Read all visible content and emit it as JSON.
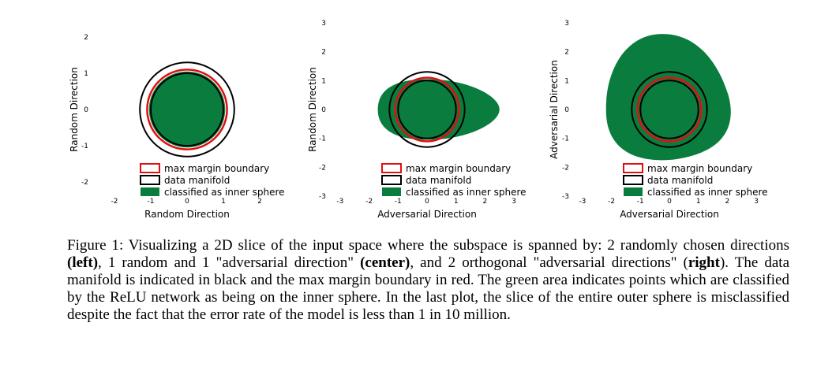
{
  "colors": {
    "inner": "#0a7d3e",
    "manifold": "#000000",
    "margin": "#e01010"
  },
  "legend": {
    "max_margin": "max margin boundary",
    "manifold": "data manifold",
    "classified": "classified as inner sphere"
  },
  "chart_data": [
    {
      "type": "region",
      "xlabel": "Random Direction",
      "ylabel": "Random Direction",
      "xticks": [
        "-2",
        "-1",
        "0",
        "1",
        "2"
      ],
      "yticks": [
        "2",
        "1",
        "0",
        "-1",
        "-2"
      ],
      "xlim": [
        -2,
        2
      ],
      "ylim": [
        -2,
        2
      ],
      "data_manifold_radius": 1.0,
      "max_margin_radius": 1.1,
      "outer_radius": 1.3,
      "inner_region": {
        "shape": "disk",
        "radius": 1.05
      }
    },
    {
      "type": "region",
      "xlabel": "Adversarial Direction",
      "ylabel": "Random Direction",
      "xticks": [
        "-3",
        "-2",
        "-1",
        "0",
        "1",
        "2",
        "3"
      ],
      "yticks": [
        "3",
        "2",
        "1",
        "0",
        "-1",
        "-2",
        "-3"
      ],
      "xlim": [
        -3,
        3
      ],
      "ylim": [
        -3,
        3
      ],
      "data_manifold_radius": 1.0,
      "max_margin_radius": 1.1,
      "outer_radius": 1.3,
      "inner_region": {
        "shape": "egg",
        "left": -1.7,
        "right": 2.5,
        "half_height": 1.05
      }
    },
    {
      "type": "region",
      "xlabel": "Adversarial Direction",
      "ylabel": "Adversarial Direction",
      "xticks": [
        "-3",
        "-2",
        "-1",
        "0",
        "1",
        "2",
        "3"
      ],
      "yticks": [
        "3",
        "2",
        "1",
        "0",
        "-1",
        "-2",
        "-3"
      ],
      "xlim": [
        -3,
        3
      ],
      "ylim": [
        -3,
        3
      ],
      "data_manifold_radius": 1.0,
      "max_margin_radius": 1.1,
      "outer_radius": 1.3,
      "inner_region": {
        "shape": "rounded-triangle",
        "extent": 2.6
      }
    }
  ],
  "caption": {
    "t1": "Figure 1: Visualizing a 2D slice of the input space where the subspace is spanned by: 2 randomly chosen directions ",
    "b1": "(left)",
    "t2": ", 1 random and 1 \"adversarial direction\" ",
    "b2": "(center)",
    "t3": ", and 2 orthogonal \"adversarial directions\" (",
    "b3": "right",
    "t4": "). The data manifold is indicated in black and the max margin boundary in red. The green area indicates points which are classified by the ReLU network as being on the inner sphere. In the last plot, the slice of the entire outer sphere is misclassified despite the fact that the error rate of the model is less than 1 in 10 million."
  }
}
